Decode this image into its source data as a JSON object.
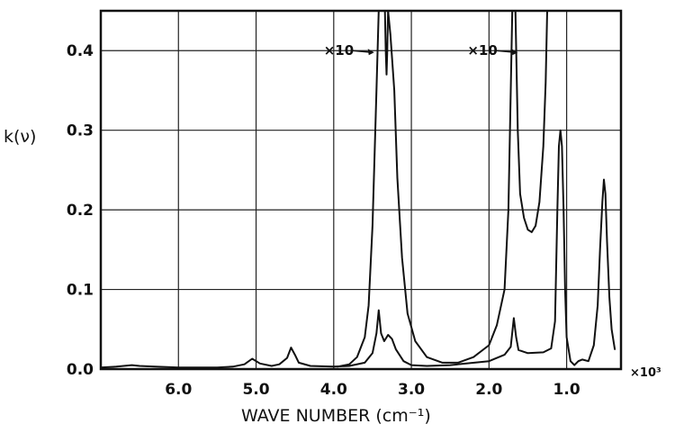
{
  "chart_data": {
    "type": "line",
    "xlabel": "WAVE NUMBER (cm⁻¹)",
    "ylabel": "k(ν)",
    "x_multiplier": "×10³",
    "x_reversed": true,
    "xlim": [
      7.0,
      0.3
    ],
    "ylim": [
      0,
      0.45
    ],
    "grid": true,
    "x_ticks": [
      {
        "value": 6.0,
        "label": "6.0"
      },
      {
        "value": 5.0,
        "label": "5.0"
      },
      {
        "value": 4.0,
        "label": "4.0"
      },
      {
        "value": 3.0,
        "label": "3.0"
      },
      {
        "value": 2.0,
        "label": "2.0"
      },
      {
        "value": 1.0,
        "label": "1.0"
      }
    ],
    "y_ticks": [
      {
        "value": 0.0,
        "label": "0.0"
      },
      {
        "value": 0.1,
        "label": "0.1"
      },
      {
        "value": 0.2,
        "label": "0.2"
      },
      {
        "value": 0.3,
        "label": "0.3"
      },
      {
        "value": 0.4,
        "label": "0.4"
      }
    ],
    "annotations": [
      {
        "text": "×10",
        "x": 3.85,
        "y": 0.4
      },
      {
        "text": "×10",
        "x": 2.0,
        "y": 0.4
      }
    ],
    "series": [
      {
        "points": [
          [
            7.0,
            0.002
          ],
          [
            6.8,
            0.003
          ],
          [
            6.6,
            0.005
          ],
          [
            6.5,
            0.004
          ],
          [
            6.3,
            0.003
          ],
          [
            6.0,
            0.002
          ],
          [
            5.7,
            0.002
          ],
          [
            5.5,
            0.002
          ],
          [
            5.3,
            0.003
          ],
          [
            5.15,
            0.006
          ],
          [
            5.05,
            0.013
          ],
          [
            4.95,
            0.007
          ],
          [
            4.8,
            0.004
          ],
          [
            4.7,
            0.006
          ],
          [
            4.6,
            0.014
          ],
          [
            4.55,
            0.027
          ],
          [
            4.5,
            0.018
          ],
          [
            4.45,
            0.008
          ],
          [
            4.3,
            0.004
          ],
          [
            4.0,
            0.003
          ],
          [
            3.8,
            0.004
          ],
          [
            3.6,
            0.008
          ],
          [
            3.5,
            0.02
          ],
          [
            3.45,
            0.045
          ],
          [
            3.42,
            0.074
          ],
          [
            3.39,
            0.045
          ],
          [
            3.35,
            0.035
          ],
          [
            3.3,
            0.043
          ],
          [
            3.25,
            0.038
          ],
          [
            3.2,
            0.025
          ],
          [
            3.1,
            0.01
          ],
          [
            3.0,
            0.005
          ],
          [
            2.8,
            0.004
          ],
          [
            2.5,
            0.005
          ],
          [
            2.0,
            0.01
          ],
          [
            1.8,
            0.018
          ],
          [
            1.72,
            0.028
          ],
          [
            1.68,
            0.064
          ],
          [
            1.65,
            0.04
          ],
          [
            1.62,
            0.024
          ],
          [
            1.5,
            0.02
          ],
          [
            1.3,
            0.021
          ],
          [
            1.2,
            0.026
          ],
          [
            1.15,
            0.06
          ],
          [
            1.12,
            0.2
          ],
          [
            1.1,
            0.28
          ],
          [
            1.08,
            0.3
          ],
          [
            1.06,
            0.28
          ],
          [
            1.04,
            0.2
          ],
          [
            1.02,
            0.1
          ],
          [
            1.0,
            0.04
          ],
          [
            0.95,
            0.01
          ],
          [
            0.9,
            0.005
          ],
          [
            0.85,
            0.01
          ],
          [
            0.8,
            0.012
          ],
          [
            0.72,
            0.01
          ],
          [
            0.65,
            0.03
          ],
          [
            0.6,
            0.08
          ],
          [
            0.57,
            0.15
          ],
          [
            0.54,
            0.21
          ],
          [
            0.52,
            0.238
          ],
          [
            0.5,
            0.22
          ],
          [
            0.48,
            0.16
          ],
          [
            0.45,
            0.09
          ],
          [
            0.42,
            0.05
          ],
          [
            0.38,
            0.025
          ]
        ]
      },
      {
        "points": [
          [
            3.95,
            0.003
          ],
          [
            3.8,
            0.006
          ],
          [
            3.7,
            0.015
          ],
          [
            3.6,
            0.04
          ],
          [
            3.55,
            0.08
          ],
          [
            3.5,
            0.18
          ],
          [
            3.45,
            0.35
          ],
          [
            3.42,
            0.45
          ],
          [
            3.3,
            0.45
          ],
          [
            3.27,
            0.42
          ],
          [
            3.22,
            0.35
          ],
          [
            3.18,
            0.24
          ],
          [
            3.12,
            0.14
          ],
          [
            3.05,
            0.07
          ],
          [
            2.95,
            0.035
          ],
          [
            2.8,
            0.015
          ],
          [
            2.6,
            0.008
          ],
          [
            2.4,
            0.008
          ],
          [
            2.2,
            0.015
          ],
          [
            2.0,
            0.03
          ],
          [
            1.9,
            0.055
          ],
          [
            1.8,
            0.1
          ],
          [
            1.75,
            0.2
          ],
          [
            1.72,
            0.35
          ],
          [
            1.7,
            0.45
          ]
        ]
      },
      {
        "points": [
          [
            1.66,
            0.45
          ],
          [
            1.63,
            0.3
          ],
          [
            1.6,
            0.22
          ],
          [
            1.55,
            0.19
          ],
          [
            1.5,
            0.175
          ],
          [
            1.45,
            0.172
          ],
          [
            1.4,
            0.18
          ],
          [
            1.35,
            0.21
          ],
          [
            1.3,
            0.28
          ],
          [
            1.27,
            0.36
          ],
          [
            1.25,
            0.45
          ]
        ]
      },
      {
        "points": [
          [
            3.34,
            0.45
          ],
          [
            3.33,
            0.4
          ],
          [
            3.32,
            0.37
          ],
          [
            3.31,
            0.4
          ],
          [
            3.3,
            0.45
          ]
        ]
      }
    ]
  }
}
